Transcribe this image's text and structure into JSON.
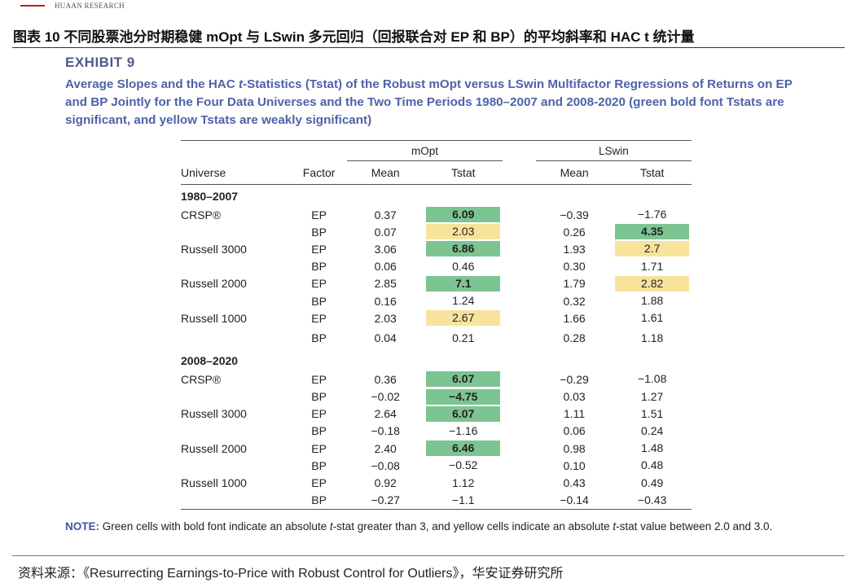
{
  "header": {
    "brand": "HUAAN RESEARCH"
  },
  "figure_title": "图表 10  不同股票池分时期稳健 mOpt 与 LSwin 多元回归（回报联合对 EP 和 BP）的平均斜率和 HAC t 统计量",
  "exhibit_label": "EXHIBIT 9",
  "caption": {
    "part1": "Average Slopes and the HAC ",
    "italic": "t",
    "part2": "-Statistics (Tstat) of the Robust mOpt versus LSwin Multifactor Regressions of Returns on EP and BP Jointly for the Four Data Universes and the Two Time Periods 1980–2007 and 2008-2020 (green bold font Tstats are significant, and yellow Tstats are weakly significant)"
  },
  "table": {
    "group_mopt": "mOpt",
    "group_lswin": "LSwin",
    "headers": {
      "universe": "Universe",
      "factor": "Factor",
      "mean": "Mean",
      "tstat": "Tstat",
      "lmean": "Mean",
      "ltstat": "Tstat"
    },
    "period1": "1980–2007",
    "period2": "2008–2020",
    "p1": [
      {
        "u": "CRSP®",
        "f": "EP",
        "m": "0.37",
        "t": "6.09",
        "lm": "−0.39",
        "lt": "−1.76"
      },
      {
        "u": "",
        "f": "BP",
        "m": "0.07",
        "t": "2.03",
        "lm": "0.26",
        "lt": "4.35"
      },
      {
        "u": "Russell 3000",
        "f": "EP",
        "m": "3.06",
        "t": "6.86",
        "lm": "1.93",
        "lt": "2.7"
      },
      {
        "u": "",
        "f": "BP",
        "m": "0.06",
        "t": "0.46",
        "lm": "0.30",
        "lt": "1.71"
      },
      {
        "u": "Russell 2000",
        "f": "EP",
        "m": "2.85",
        "t": "7.1",
        "lm": "1.79",
        "lt": "2.82"
      },
      {
        "u": "",
        "f": "BP",
        "m": "0.16",
        "t": "1.24",
        "lm": "0.32",
        "lt": "1.88"
      },
      {
        "u": "Russell 1000",
        "f": "EP",
        "m": "2.03",
        "t": "2.67",
        "lm": "1.66",
        "lt": "1.61"
      },
      {
        "u": "",
        "f": "BP",
        "m": "0.04",
        "t": "0.21",
        "lm": "0.28",
        "lt": "1.18"
      }
    ],
    "p2": [
      {
        "u": "CRSP®",
        "f": "EP",
        "m": "0.36",
        "t": "6.07",
        "lm": "−0.29",
        "lt": "−1.08"
      },
      {
        "u": "",
        "f": "BP",
        "m": "−0.02",
        "t": "−4.75",
        "lm": "0.03",
        "lt": "1.27"
      },
      {
        "u": "Russell 3000",
        "f": "EP",
        "m": "2.64",
        "t": "6.07",
        "lm": "1.11",
        "lt": "1.51"
      },
      {
        "u": "",
        "f": "BP",
        "m": "−0.18",
        "t": "−1.16",
        "lm": "0.06",
        "lt": "0.24"
      },
      {
        "u": "Russell 2000",
        "f": "EP",
        "m": "2.40",
        "t": "6.46",
        "lm": "0.98",
        "lt": "1.48"
      },
      {
        "u": "",
        "f": "BP",
        "m": "−0.08",
        "t": "−0.52",
        "lm": "0.10",
        "lt": "0.48"
      },
      {
        "u": "Russell 1000",
        "f": "EP",
        "m": "0.92",
        "t": "1.12",
        "lm": "0.43",
        "lt": "0.49"
      },
      {
        "u": "",
        "f": "BP",
        "m": "−0.27",
        "t": "−1.1",
        "lm": "−0.14",
        "lt": "−0.43"
      }
    ],
    "colors": {
      "significant": "#7dc493",
      "weakly_significant": "#f7e39c"
    }
  },
  "note": {
    "label": "NOTE:",
    "text1": " Green cells with bold font indicate an absolute ",
    "italic1": "t",
    "text2": "-stat greater than 3, and yellow cells indicate an absolute ",
    "italic2": "t",
    "text3": "-stat value between 2.0 and 3.0."
  },
  "source": "资料来源：《Resurrecting Earnings-to-Price with Robust Control for Outliers》，华安证券研究所"
}
